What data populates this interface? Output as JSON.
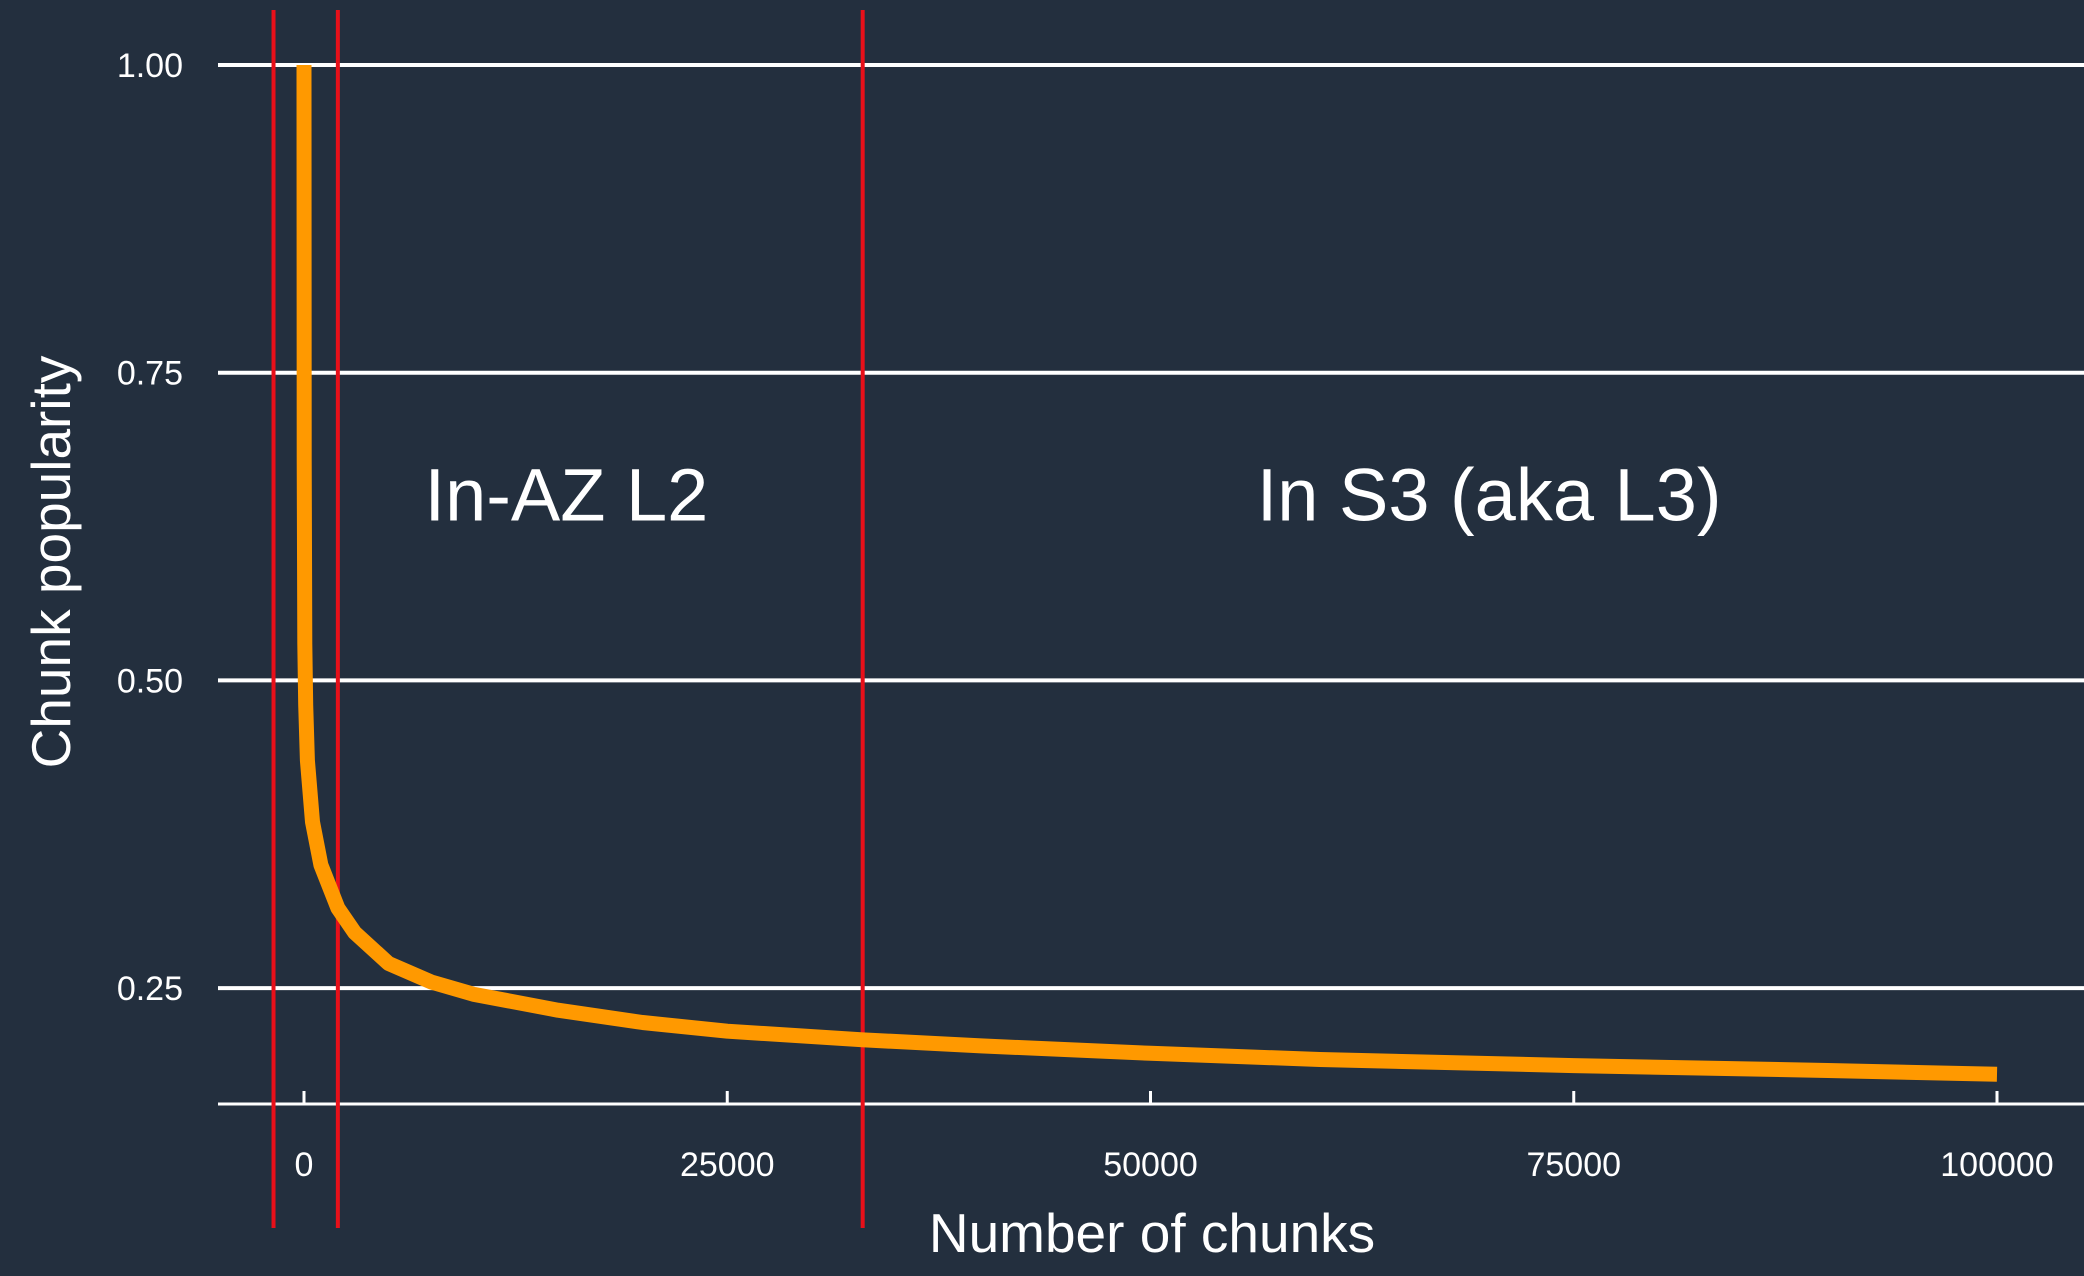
{
  "chart_data": {
    "type": "line",
    "title": "",
    "xlabel": "Number of chunks",
    "ylabel": "Chunk popularity",
    "xlim": [
      -5000,
      105000
    ],
    "ylim": [
      0.14,
      1.06
    ],
    "x_ticks": [
      0,
      25000,
      50000,
      75000,
      100000
    ],
    "x_tick_labels": [
      "0",
      "25000",
      "50000",
      "75000",
      "100000"
    ],
    "y_ticks": [
      0.25,
      0.5,
      0.75,
      1.0
    ],
    "y_tick_labels": [
      "0.25",
      "0.50",
      "0.75",
      "1.00"
    ],
    "grid": "horizontal",
    "series": [
      {
        "color": "#ff9900",
        "x": [
          1,
          10,
          50,
          100,
          200,
          500,
          1000,
          2000,
          3000,
          5000,
          7500,
          10000,
          15000,
          20000,
          25000,
          33000,
          40000,
          50000,
          60000,
          75000,
          90000,
          100000
        ],
        "y": [
          1.0,
          0.68,
          0.53,
          0.48,
          0.435,
          0.385,
          0.35,
          0.315,
          0.295,
          0.27,
          0.255,
          0.245,
          0.232,
          0.222,
          0.215,
          0.208,
          0.203,
          0.197,
          0.192,
          0.187,
          0.183,
          0.18
        ]
      }
    ],
    "vertical_markers": {
      "color": "#e8101a",
      "x": [
        -1800,
        2000,
        33000
      ]
    },
    "annotations": [
      {
        "text": "In-AZ L2",
        "x": 15500,
        "y": 0.63
      },
      {
        "text": "In S3 (aka L3)",
        "x": 70000,
        "y": 0.63
      }
    ]
  },
  "colors": {
    "background": "#232f3e",
    "gridline": "#ffffff",
    "text": "#ffffff"
  }
}
